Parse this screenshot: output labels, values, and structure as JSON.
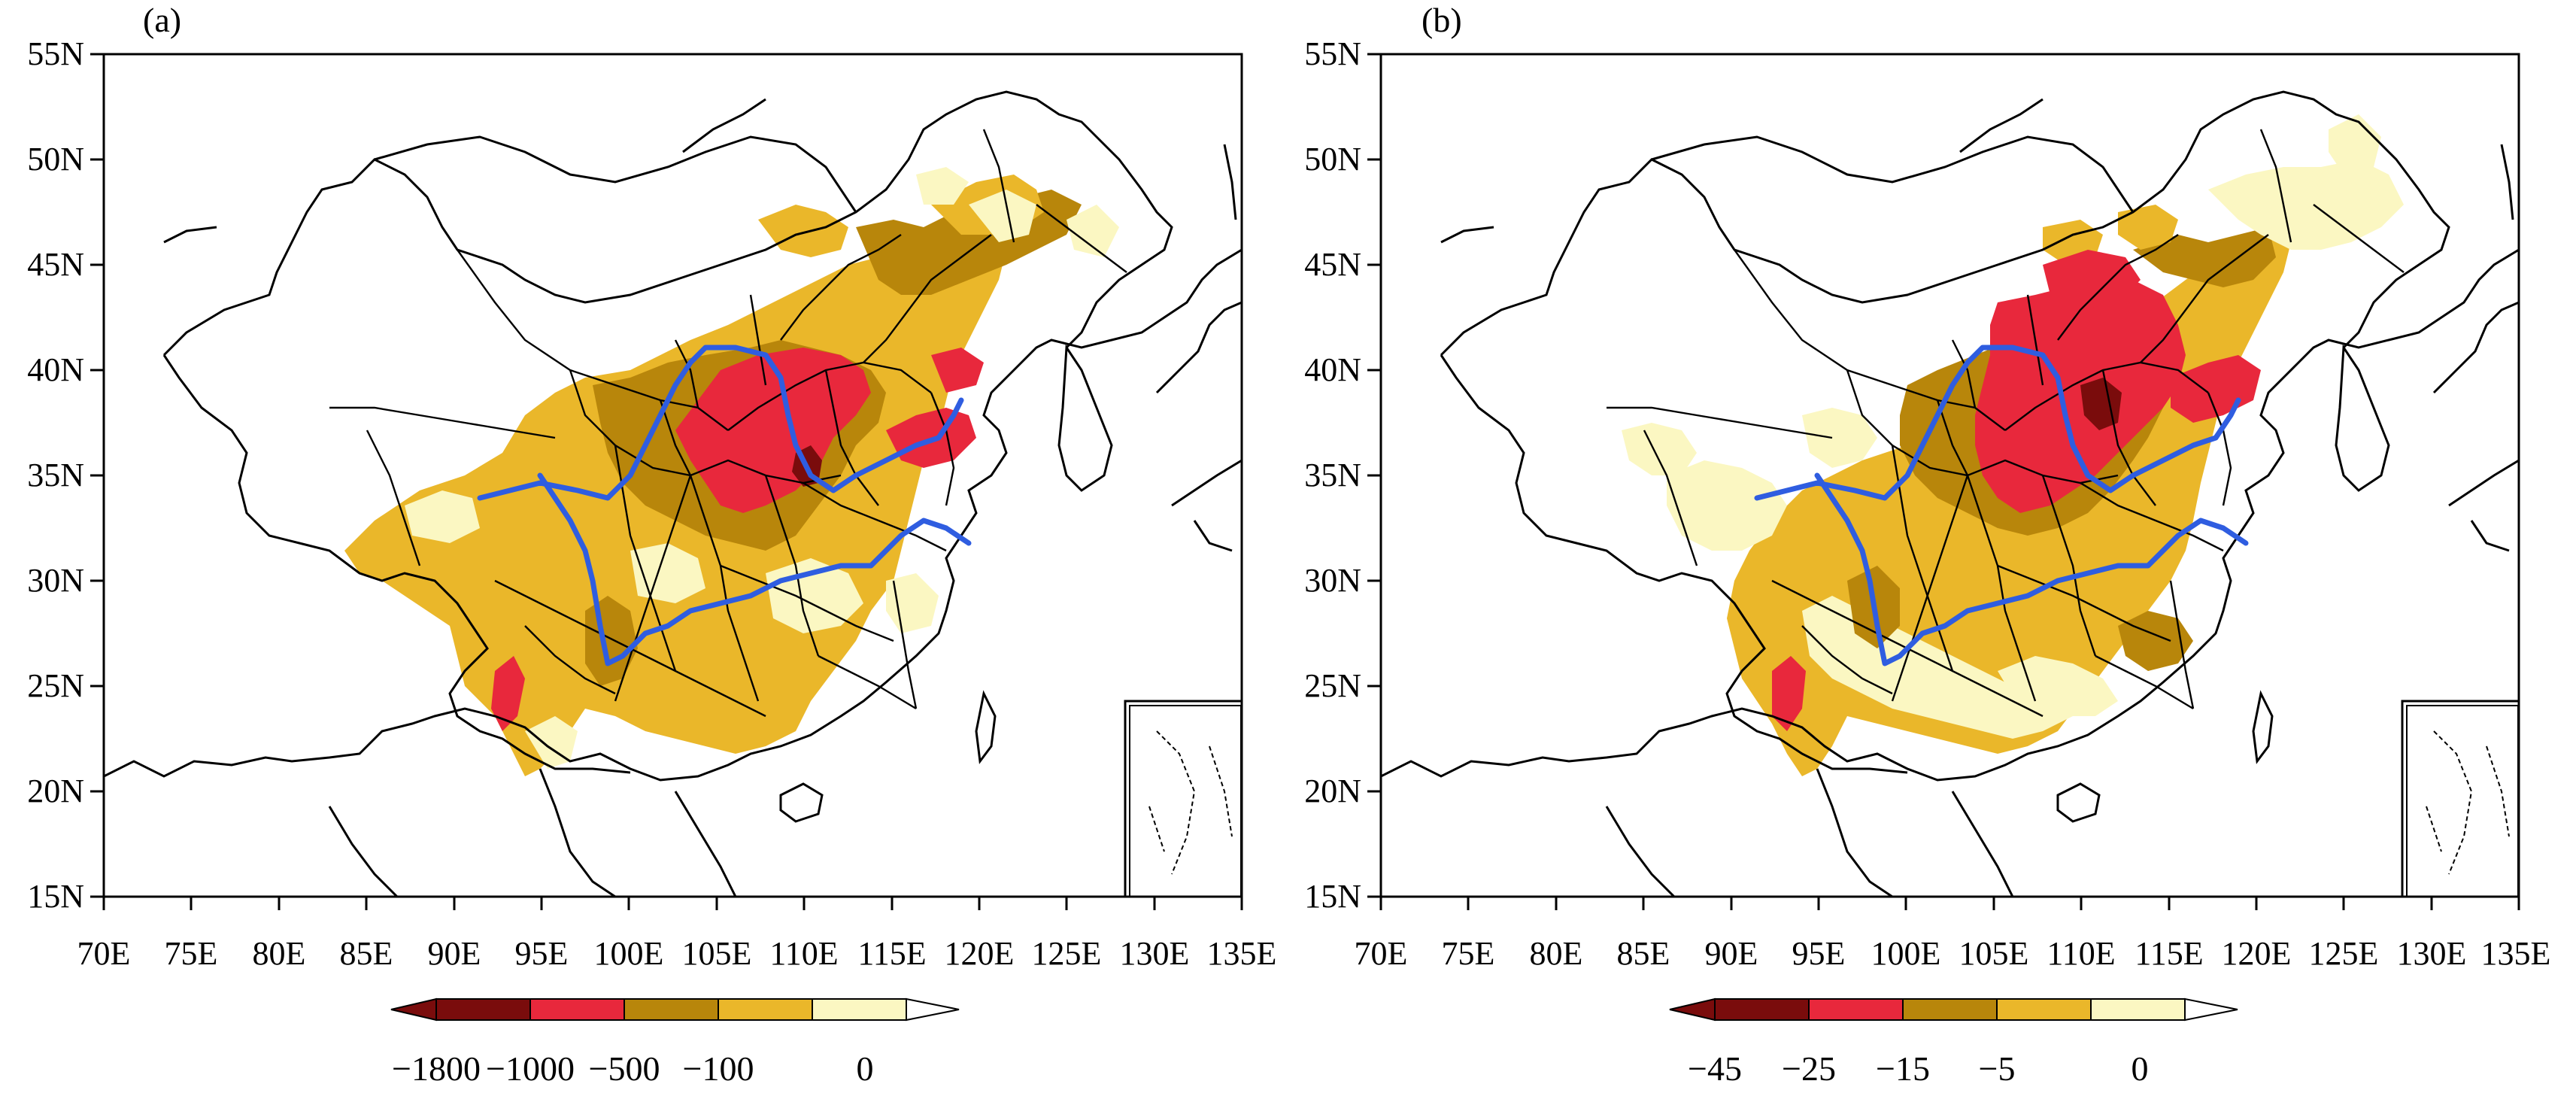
{
  "panels": [
    {
      "label": "(a)",
      "lat_ticks": [
        "55N",
        "50N",
        "45N",
        "40N",
        "35N",
        "30N",
        "25N",
        "20N",
        "15N"
      ],
      "lon_ticks": [
        "70E",
        "75E",
        "80E",
        "85E",
        "90E",
        "95E",
        "100E",
        "105E",
        "110E",
        "115E",
        "120E",
        "125E",
        "130E",
        "135E"
      ],
      "colorbar": {
        "labels": [
          "−1800",
          "−1000",
          "−500",
          "−100",
          "0"
        ]
      }
    },
    {
      "label": "(b)",
      "lat_ticks": [
        "55N",
        "50N",
        "45N",
        "40N",
        "35N",
        "30N",
        "25N",
        "20N",
        "15N"
      ],
      "lon_ticks": [
        "70E",
        "75E",
        "80E",
        "85E",
        "90E",
        "95E",
        "100E",
        "105E",
        "110E",
        "115E",
        "120E",
        "125E",
        "130E",
        "135E"
      ],
      "colorbar": {
        "labels": [
          "−45",
          "−25",
          "−15",
          "−5",
          "0"
        ]
      }
    }
  ],
  "map": {
    "lon_range": [
      70,
      135
    ],
    "lat_range": [
      15,
      55
    ],
    "colors": {
      "darkest": "#7a0c0c",
      "red": "#e8283c",
      "brown": "#b8860b",
      "gold": "#eab72a",
      "pale": "#fbf7c2",
      "white": "#ffffff",
      "river": "#2f5de0",
      "border": "#000000"
    },
    "rivers": [
      "Yellow River",
      "Yangtze River"
    ]
  }
}
